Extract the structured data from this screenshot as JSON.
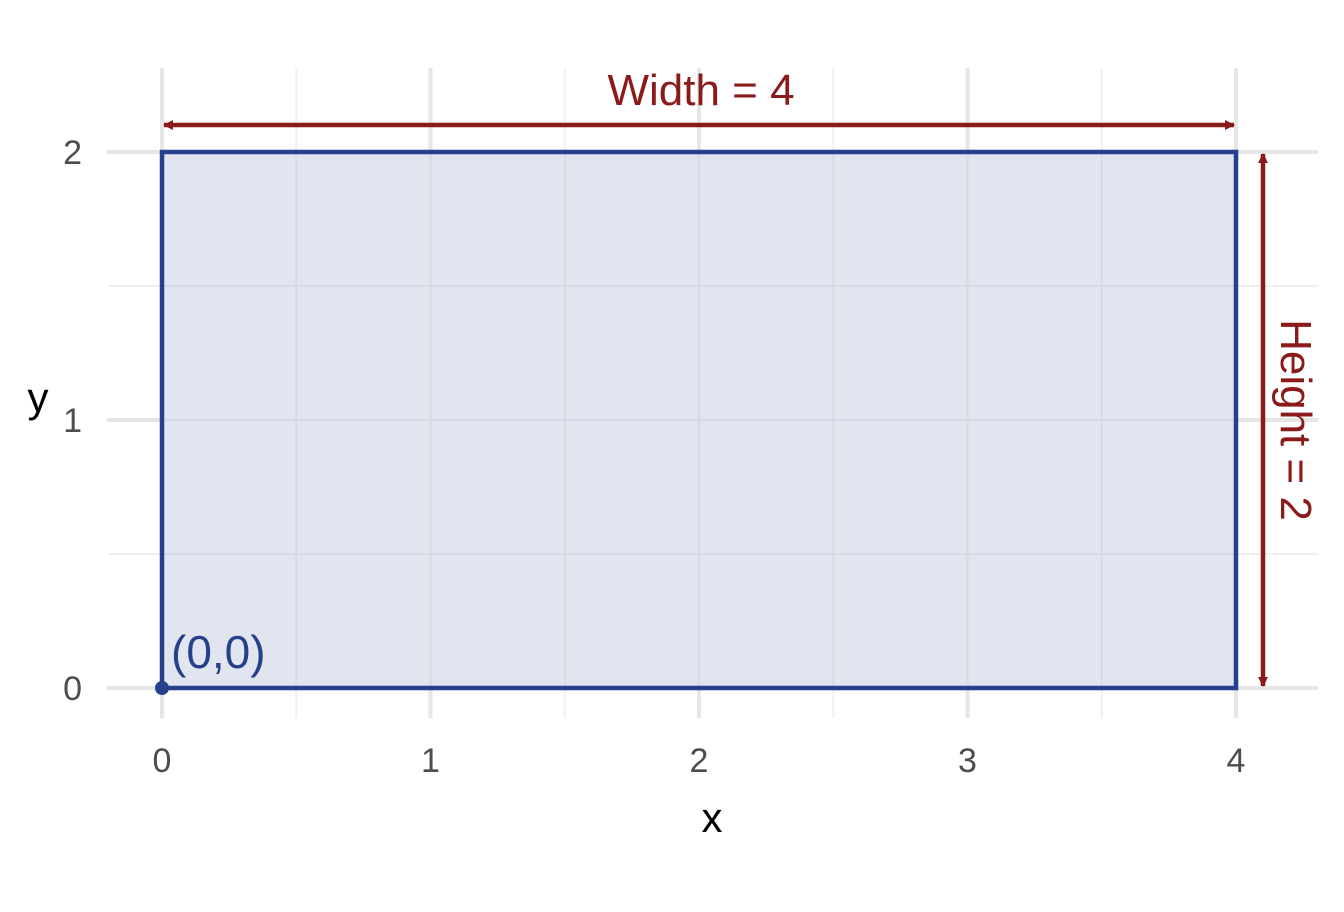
{
  "chart_data": {
    "type": "diagram",
    "x_axis": {
      "label": "x",
      "ticks": [
        0,
        1,
        2,
        3,
        4
      ],
      "range": [
        0,
        4
      ]
    },
    "y_axis": {
      "label": "y",
      "ticks": [
        0,
        1,
        2
      ],
      "range": [
        0,
        2
      ]
    },
    "grid": true,
    "rectangle": {
      "x0": 0,
      "y0": 0,
      "width": 4,
      "height": 2
    },
    "annotations": {
      "width_label": "Width = 4",
      "height_label": "Height = 2",
      "origin_label": "(0,0)"
    },
    "origin_point": {
      "x": 0,
      "y": 0
    },
    "colors": {
      "rect_stroke": "#27408b",
      "rect_fill": "#dfe3ee",
      "arrow": "#8b1a1a",
      "grid_major": "#e6e6e6",
      "grid_minor": "#f0f0f0",
      "grid_inside": "#d3d6df"
    }
  }
}
